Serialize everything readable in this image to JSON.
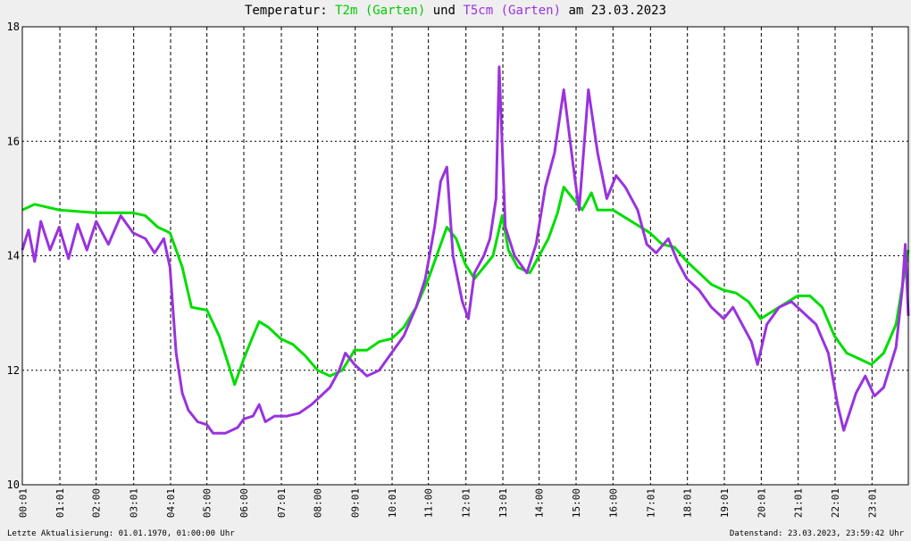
{
  "title": {
    "prefix": "Temperatur:",
    "series1": "T2m (Garten)",
    "middle": "und",
    "series2": "T5cm (Garten)",
    "suffix": "am 23.03.2023"
  },
  "footer": {
    "left": "Letzte Aktualisierung: 01.01.1970, 01:00:00 Uhr",
    "right": "Datenstand: 23.03.2023, 23:59:42 Uhr"
  },
  "colors": {
    "t2m": "#00dd00",
    "t5cm": "#9933dd",
    "background": "#efefef",
    "plot": "#ffffff",
    "grid": "#000000"
  },
  "chart_data": {
    "type": "line",
    "title": "Temperatur: T2m (Garten) und T5cm (Garten) am 23.03.2023",
    "xlabel": "",
    "ylabel": "",
    "ylim": [
      10,
      18
    ],
    "xlim": [
      "00:00",
      "24:00"
    ],
    "grid": true,
    "yticks": [
      10,
      12,
      14,
      16,
      18
    ],
    "xticks": [
      "00:01",
      "01:01",
      "02:00",
      "03:01",
      "04:01",
      "05:00",
      "06:00",
      "07:01",
      "08:00",
      "09:01",
      "10:01",
      "11:00",
      "12:01",
      "13:01",
      "14:00",
      "15:00",
      "16:00",
      "17:01",
      "18:01",
      "19:01",
      "20:01",
      "21:01",
      "22:01",
      "23:01"
    ],
    "series": [
      {
        "name": "T2m (Garten)",
        "color": "#00dd00",
        "points": [
          [
            "00:00",
            14.8
          ],
          [
            "00:20",
            14.9
          ],
          [
            "01:00",
            14.8
          ],
          [
            "02:00",
            14.75
          ],
          [
            "03:00",
            14.75
          ],
          [
            "03:20",
            14.7
          ],
          [
            "03:40",
            14.5
          ],
          [
            "04:00",
            14.4
          ],
          [
            "04:20",
            13.8
          ],
          [
            "04:35",
            13.1
          ],
          [
            "05:00",
            13.05
          ],
          [
            "05:20",
            12.6
          ],
          [
            "05:35",
            12.1
          ],
          [
            "05:45",
            11.75
          ],
          [
            "06:00",
            12.2
          ],
          [
            "06:15",
            12.6
          ],
          [
            "06:25",
            12.85
          ],
          [
            "06:40",
            12.75
          ],
          [
            "07:00",
            12.55
          ],
          [
            "07:20",
            12.45
          ],
          [
            "07:40",
            12.25
          ],
          [
            "08:00",
            12.0
          ],
          [
            "08:20",
            11.9
          ],
          [
            "08:40",
            12.0
          ],
          [
            "09:00",
            12.35
          ],
          [
            "09:20",
            12.35
          ],
          [
            "09:40",
            12.5
          ],
          [
            "10:00",
            12.55
          ],
          [
            "10:20",
            12.75
          ],
          [
            "10:40",
            13.1
          ],
          [
            "11:00",
            13.6
          ],
          [
            "11:20",
            14.2
          ],
          [
            "11:30",
            14.5
          ],
          [
            "11:45",
            14.3
          ],
          [
            "12:00",
            13.85
          ],
          [
            "12:15",
            13.6
          ],
          [
            "12:30",
            13.8
          ],
          [
            "12:45",
            14.0
          ],
          [
            "13:00",
            14.7
          ],
          [
            "13:10",
            14.1
          ],
          [
            "13:25",
            13.8
          ],
          [
            "13:45",
            13.7
          ],
          [
            "14:00",
            14.0
          ],
          [
            "14:15",
            14.3
          ],
          [
            "14:30",
            14.75
          ],
          [
            "14:40",
            15.2
          ],
          [
            "14:55",
            15.0
          ],
          [
            "15:10",
            14.8
          ],
          [
            "15:25",
            15.1
          ],
          [
            "15:35",
            14.8
          ],
          [
            "16:00",
            14.8
          ],
          [
            "16:30",
            14.6
          ],
          [
            "17:00",
            14.4
          ],
          [
            "17:20",
            14.2
          ],
          [
            "17:40",
            14.15
          ],
          [
            "18:00",
            13.9
          ],
          [
            "18:20",
            13.7
          ],
          [
            "18:40",
            13.5
          ],
          [
            "19:00",
            13.4
          ],
          [
            "19:20",
            13.35
          ],
          [
            "19:40",
            13.2
          ],
          [
            "20:00",
            12.9
          ],
          [
            "20:30",
            13.1
          ],
          [
            "21:00",
            13.3
          ],
          [
            "21:20",
            13.3
          ],
          [
            "21:40",
            13.1
          ],
          [
            "22:00",
            12.6
          ],
          [
            "22:20",
            12.3
          ],
          [
            "22:40",
            12.2
          ],
          [
            "23:00",
            12.1
          ],
          [
            "23:20",
            12.3
          ],
          [
            "23:40",
            12.8
          ],
          [
            "24:00",
            14.1
          ]
        ]
      },
      {
        "name": "T5cm (Garten)",
        "color": "#9933dd",
        "points": [
          [
            "00:00",
            14.1
          ],
          [
            "00:10",
            14.45
          ],
          [
            "00:20",
            13.9
          ],
          [
            "00:30",
            14.6
          ],
          [
            "00:45",
            14.1
          ],
          [
            "01:00",
            14.5
          ],
          [
            "01:15",
            13.95
          ],
          [
            "01:30",
            14.55
          ],
          [
            "01:45",
            14.1
          ],
          [
            "02:00",
            14.6
          ],
          [
            "02:20",
            14.2
          ],
          [
            "02:40",
            14.7
          ],
          [
            "03:00",
            14.4
          ],
          [
            "03:20",
            14.3
          ],
          [
            "03:35",
            14.05
          ],
          [
            "03:50",
            14.3
          ],
          [
            "04:00",
            13.8
          ],
          [
            "04:10",
            12.3
          ],
          [
            "04:20",
            11.6
          ],
          [
            "04:30",
            11.3
          ],
          [
            "04:45",
            11.1
          ],
          [
            "05:00",
            11.05
          ],
          [
            "05:10",
            10.9
          ],
          [
            "05:30",
            10.9
          ],
          [
            "05:50",
            11.0
          ],
          [
            "06:00",
            11.15
          ],
          [
            "06:15",
            11.2
          ],
          [
            "06:25",
            11.4
          ],
          [
            "06:35",
            11.1
          ],
          [
            "06:50",
            11.2
          ],
          [
            "07:10",
            11.2
          ],
          [
            "07:30",
            11.25
          ],
          [
            "07:50",
            11.4
          ],
          [
            "08:00",
            11.5
          ],
          [
            "08:20",
            11.7
          ],
          [
            "08:35",
            12.0
          ],
          [
            "08:45",
            12.3
          ],
          [
            "09:00",
            12.1
          ],
          [
            "09:20",
            11.9
          ],
          [
            "09:40",
            12.0
          ],
          [
            "10:00",
            12.3
          ],
          [
            "10:20",
            12.6
          ],
          [
            "10:40",
            13.1
          ],
          [
            "10:55",
            13.6
          ],
          [
            "11:10",
            14.5
          ],
          [
            "11:20",
            15.3
          ],
          [
            "11:30",
            15.55
          ],
          [
            "11:40",
            14.0
          ],
          [
            "11:55",
            13.2
          ],
          [
            "12:05",
            12.9
          ],
          [
            "12:15",
            13.7
          ],
          [
            "12:30",
            14.0
          ],
          [
            "12:40",
            14.3
          ],
          [
            "12:50",
            15.0
          ],
          [
            "12:55",
            17.3
          ],
          [
            "13:05",
            14.5
          ],
          [
            "13:20",
            14.0
          ],
          [
            "13:40",
            13.7
          ],
          [
            "13:55",
            14.2
          ],
          [
            "14:10",
            15.2
          ],
          [
            "14:25",
            15.8
          ],
          [
            "14:40",
            16.9
          ],
          [
            "14:55",
            15.6
          ],
          [
            "15:05",
            14.8
          ],
          [
            "15:20",
            16.9
          ],
          [
            "15:35",
            15.8
          ],
          [
            "15:50",
            15.0
          ],
          [
            "16:05",
            15.4
          ],
          [
            "16:20",
            15.2
          ],
          [
            "16:40",
            14.8
          ],
          [
            "16:55",
            14.2
          ],
          [
            "17:10",
            14.05
          ],
          [
            "17:30",
            14.3
          ],
          [
            "17:45",
            13.9
          ],
          [
            "18:00",
            13.6
          ],
          [
            "18:20",
            13.4
          ],
          [
            "18:40",
            13.1
          ],
          [
            "19:00",
            12.9
          ],
          [
            "19:15",
            13.1
          ],
          [
            "19:30",
            12.8
          ],
          [
            "19:45",
            12.5
          ],
          [
            "19:55",
            12.1
          ],
          [
            "20:10",
            12.8
          ],
          [
            "20:30",
            13.1
          ],
          [
            "20:50",
            13.2
          ],
          [
            "21:10",
            13.0
          ],
          [
            "21:30",
            12.8
          ],
          [
            "21:50",
            12.3
          ],
          [
            "22:05",
            11.4
          ],
          [
            "22:15",
            10.95
          ],
          [
            "22:35",
            11.6
          ],
          [
            "22:50",
            11.9
          ],
          [
            "23:05",
            11.55
          ],
          [
            "23:20",
            11.7
          ],
          [
            "23:40",
            12.4
          ],
          [
            "23:50",
            13.4
          ],
          [
            "23:55",
            14.2
          ],
          [
            "24:00",
            12.95
          ]
        ]
      }
    ]
  }
}
